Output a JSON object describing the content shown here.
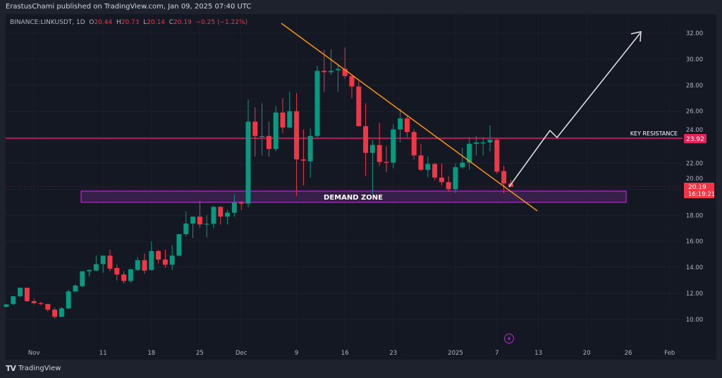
{
  "header": {
    "publisher_line": "ErastusChami published on TradingView.com, Jan 09, 2025 07:40 UTC"
  },
  "legend": {
    "symbol": "BINANCE:LINKUSDT, 1D",
    "o_label": "O",
    "open": "20.44",
    "h_label": "H",
    "high": "20.73",
    "l_label": "L",
    "low": "20.14",
    "c_label": "C",
    "close": "20.19",
    "change": "−0.25 (−1.22%)"
  },
  "annotations": {
    "key_resistance_label": "KEY RESISTANCE",
    "key_resistance_price": "23.92",
    "demand_zone_label": "DEMAND ZONE",
    "last_price": "20.19",
    "countdown": "16:19:21"
  },
  "colors": {
    "up": "#089981",
    "down": "#f23645",
    "resistance": "#e91e63",
    "trendline": "#f7931a",
    "demand_zone_border": "#9c27b0",
    "demand_zone_fill": "#36204a",
    "projection": "#e6e6e6"
  },
  "icons": {
    "event": "lightning-icon",
    "logo": "tradingview-logo"
  },
  "footer": {
    "brand": "TradingView"
  },
  "chart_data": {
    "type": "candlestick",
    "symbol": "BINANCE:LINKUSDT",
    "interval": "1D",
    "ylim": [
      9,
      33
    ],
    "y_ticks": [
      "32.00",
      "30.00",
      "28.00",
      "26.00",
      "24.00",
      "22.00",
      "20.00",
      "18.00",
      "16.00",
      "14.00",
      "12.00",
      "10.00"
    ],
    "x_ticks": [
      {
        "label": "Nov",
        "date": "2024-11-01"
      },
      {
        "label": "11",
        "date": "2024-11-11"
      },
      {
        "label": "18",
        "date": "2024-11-18"
      },
      {
        "label": "25",
        "date": "2024-11-25"
      },
      {
        "label": "Dec",
        "date": "2024-12-01"
      },
      {
        "label": "9",
        "date": "2024-12-09"
      },
      {
        "label": "16",
        "date": "2024-12-16"
      },
      {
        "label": "23",
        "date": "2024-12-23"
      },
      {
        "label": "2025",
        "date": "2025-01-01"
      },
      {
        "label": "7",
        "date": "2025-01-07"
      },
      {
        "label": "13",
        "date": "2025-01-13"
      },
      {
        "label": "20",
        "date": "2025-01-20"
      },
      {
        "label": "26",
        "date": "2025-01-26"
      },
      {
        "label": "Feb",
        "date": "2025-02-01"
      }
    ],
    "key_resistance": 23.92,
    "demand_zone": [
      19.0,
      19.86
    ],
    "candles_start": "2024-10-28",
    "ohlc": [
      [
        10.97,
        11.2,
        10.9,
        11.15
      ],
      [
        11.19,
        11.8,
        11.1,
        11.78
      ],
      [
        11.78,
        12.45,
        11.7,
        12.43
      ],
      [
        12.43,
        12.45,
        11.35,
        11.4
      ],
      [
        11.4,
        11.6,
        11.15,
        11.25
      ],
      [
        11.25,
        11.35,
        11.1,
        11.2
      ],
      [
        11.18,
        11.2,
        10.6,
        10.75
      ],
      [
        10.75,
        10.9,
        10.05,
        10.2
      ],
      [
        10.2,
        10.95,
        10.2,
        10.85
      ],
      [
        10.85,
        12.3,
        10.8,
        12.15
      ],
      [
        12.15,
        12.7,
        12.1,
        12.6
      ],
      [
        12.55,
        13.7,
        12.5,
        13.7
      ],
      [
        13.7,
        13.85,
        13.3,
        13.8
      ],
      [
        13.75,
        14.9,
        13.7,
        14.25
      ],
      [
        14.25,
        14.9,
        13.6,
        14.9
      ],
      [
        14.9,
        15.36,
        13.7,
        13.9
      ],
      [
        13.95,
        14.2,
        13.0,
        13.45
      ],
      [
        13.45,
        13.7,
        12.75,
        12.95
      ],
      [
        12.95,
        13.9,
        12.8,
        13.85
      ],
      [
        13.8,
        14.8,
        13.75,
        14.55
      ],
      [
        14.55,
        15.05,
        13.5,
        13.75
      ],
      [
        13.8,
        16.0,
        13.75,
        15.25
      ],
      [
        15.25,
        15.35,
        14.3,
        14.6
      ],
      [
        14.6,
        15.36,
        13.95,
        14.2
      ],
      [
        14.2,
        15.7,
        13.8,
        14.9
      ],
      [
        14.9,
        16.55,
        14.85,
        16.55
      ],
      [
        16.55,
        18.3,
        16.4,
        17.37
      ],
      [
        17.37,
        17.9,
        16.25,
        17.9
      ],
      [
        17.9,
        19.1,
        17.05,
        17.3
      ],
      [
        17.3,
        18.0,
        16.3,
        17.35
      ],
      [
        17.35,
        18.7,
        17.0,
        18.65
      ],
      [
        18.65,
        18.7,
        17.3,
        17.9
      ],
      [
        17.9,
        18.4,
        17.3,
        18.2
      ],
      [
        18.2,
        19.6,
        17.9,
        19.0
      ],
      [
        19.0,
        19.1,
        18.4,
        18.9
      ],
      [
        18.9,
        26.9,
        18.6,
        25.2
      ],
      [
        25.2,
        26.3,
        22.5,
        24.1
      ],
      [
        24.08,
        26.6,
        22.6,
        24.08
      ],
      [
        24.1,
        25.2,
        22.5,
        23.1
      ],
      [
        23.1,
        26.4,
        22.9,
        25.9
      ],
      [
        25.9,
        27.0,
        24.3,
        24.75
      ],
      [
        24.75,
        27.5,
        24.7,
        26.0
      ],
      [
        26.0,
        27.4,
        19.5,
        22.3
      ],
      [
        22.3,
        24.6,
        20.3,
        22.2
      ],
      [
        22.15,
        24.7,
        20.9,
        24.1
      ],
      [
        24.1,
        29.5,
        24.0,
        29.1
      ],
      [
        29.1,
        30.7,
        27.5,
        29.0
      ],
      [
        29.0,
        30.75,
        28.8,
        29.1
      ],
      [
        29.15,
        29.6,
        27.5,
        29.25
      ],
      [
        29.25,
        30.9,
        28.5,
        28.7
      ],
      [
        28.7,
        28.8,
        27.0,
        27.9
      ],
      [
        27.9,
        28.3,
        24.9,
        24.85
      ],
      [
        24.85,
        26.6,
        21.0,
        22.8
      ],
      [
        22.8,
        23.8,
        19.6,
        23.4
      ],
      [
        23.4,
        25.1,
        21.8,
        22.1
      ],
      [
        22.1,
        23.3,
        21.3,
        22.05
      ],
      [
        22.05,
        25.0,
        21.6,
        24.6
      ],
      [
        24.6,
        26.2,
        23.6,
        25.45
      ],
      [
        25.45,
        25.7,
        24.0,
        24.4
      ],
      [
        24.4,
        24.6,
        22.3,
        22.6
      ],
      [
        22.6,
        23.5,
        21.4,
        21.5
      ],
      [
        21.5,
        22.5,
        20.9,
        21.95
      ],
      [
        21.95,
        22.0,
        20.7,
        20.9
      ],
      [
        20.9,
        22.0,
        20.3,
        20.55
      ],
      [
        20.55,
        21.0,
        19.8,
        20.0
      ],
      [
        20.0,
        22.0,
        19.7,
        21.7
      ],
      [
        21.7,
        23.2,
        21.6,
        22.05
      ],
      [
        22.05,
        24.0,
        21.5,
        23.5
      ],
      [
        23.5,
        24.1,
        22.6,
        23.6
      ],
      [
        23.6,
        24.0,
        22.6,
        23.6
      ],
      [
        23.6,
        24.9,
        22.9,
        23.8
      ],
      [
        23.8,
        23.9,
        21.2,
        21.35
      ],
      [
        21.4,
        21.8,
        19.7,
        20.44
      ],
      [
        20.44,
        20.73,
        20.14,
        20.19
      ]
    ]
  }
}
